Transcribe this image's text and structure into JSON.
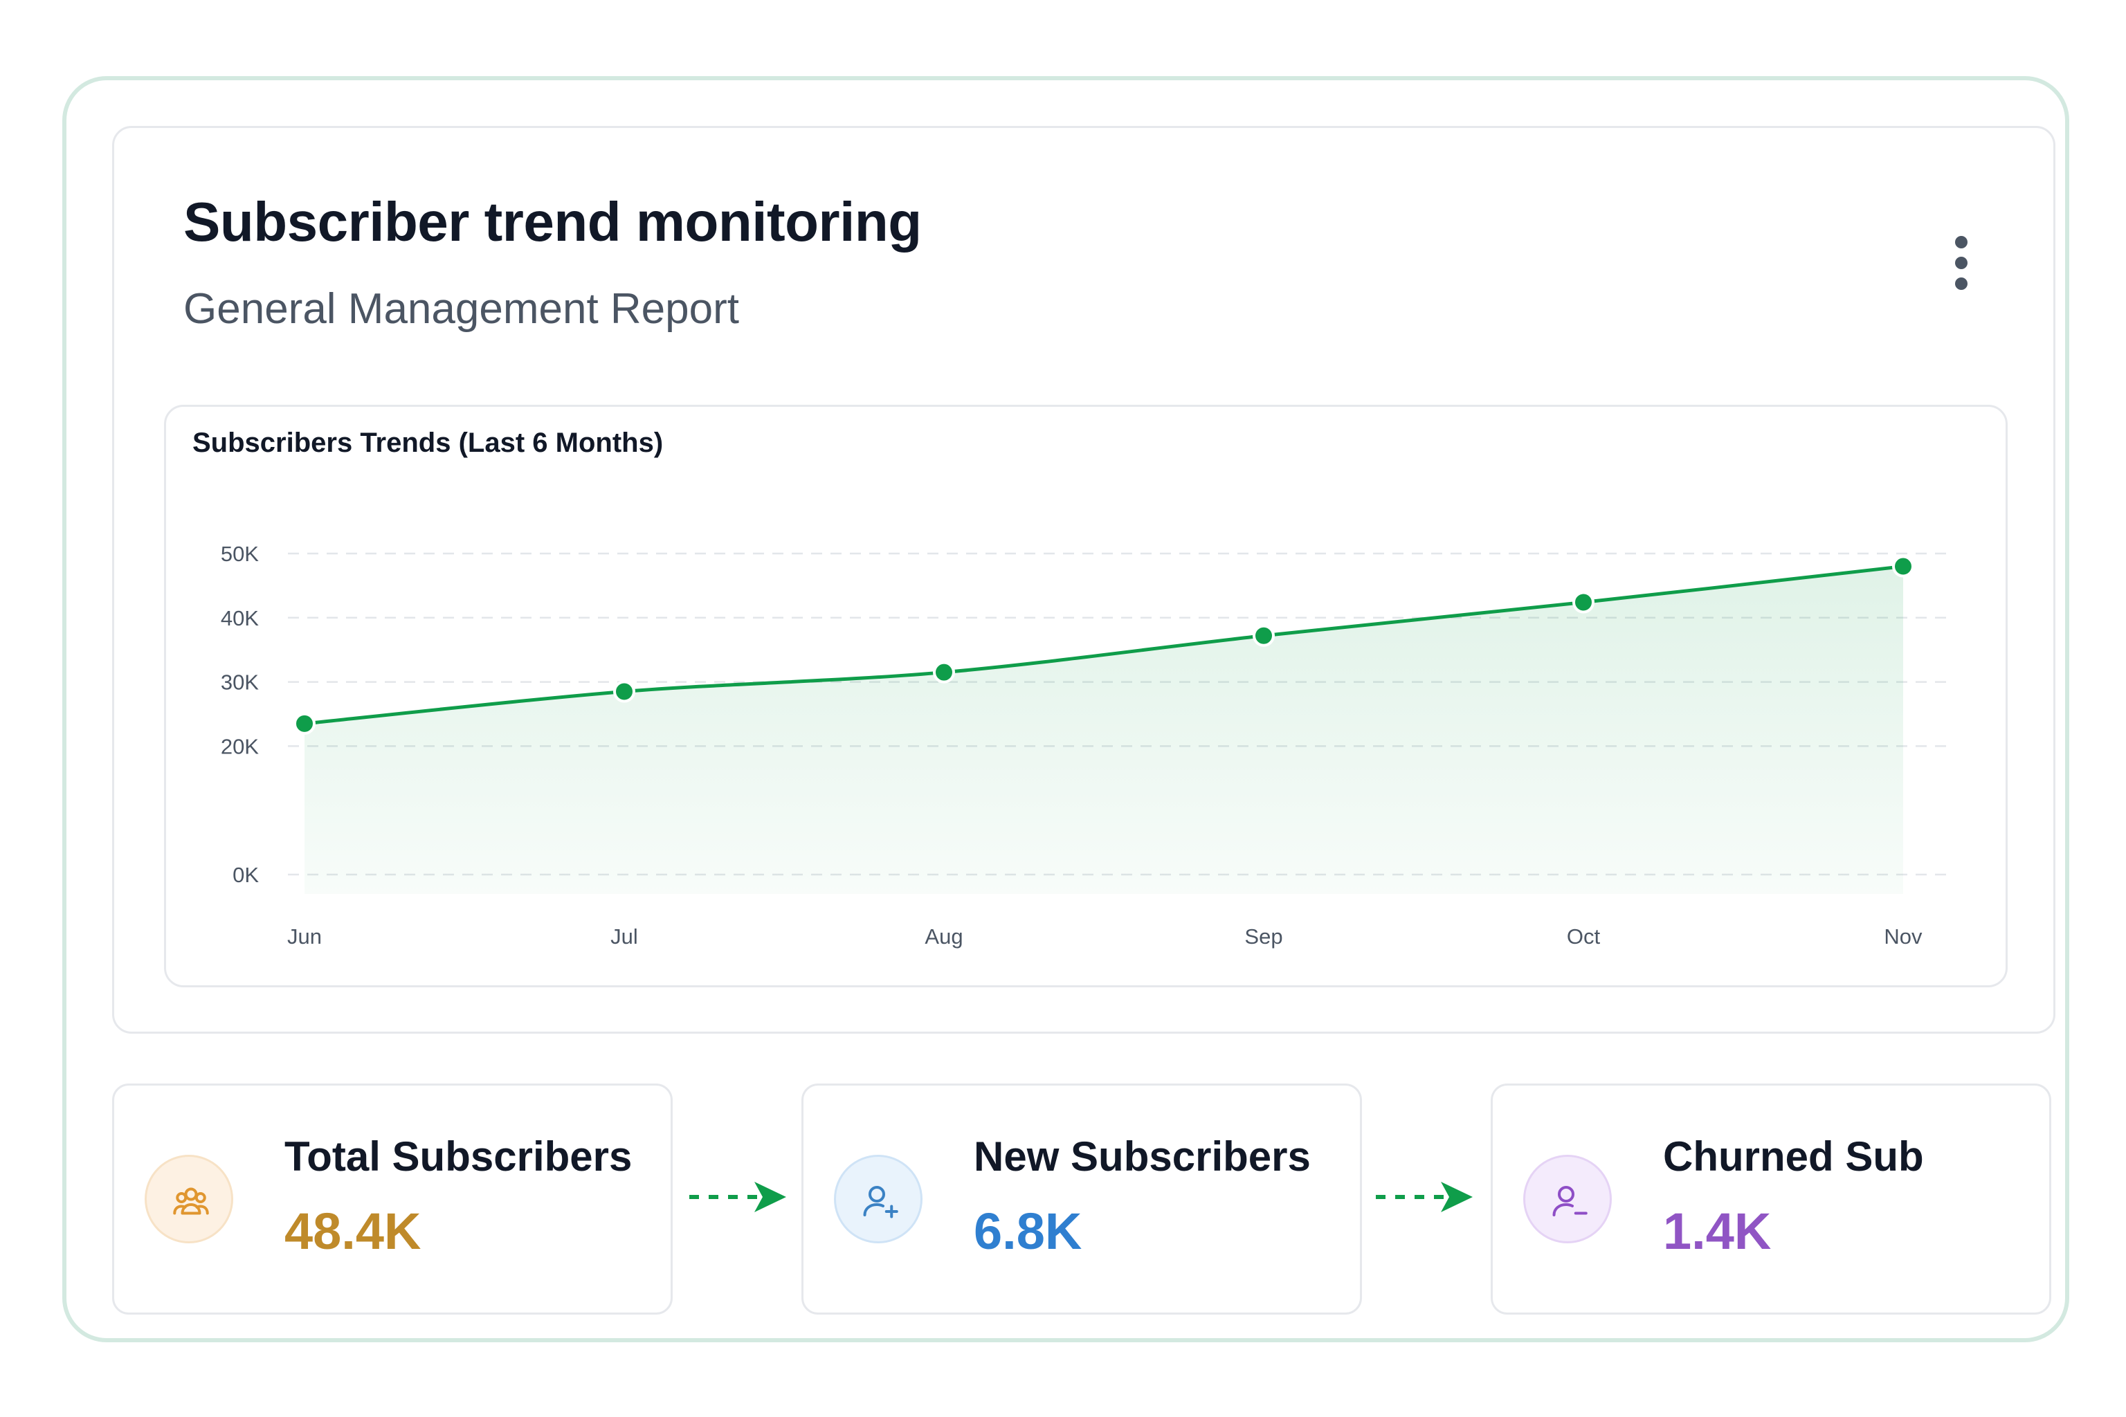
{
  "header": {
    "title": "Subscriber trend monitoring",
    "subtitle": "General Management Report",
    "menu_icon": "more-vertical-icon"
  },
  "chart_data": {
    "type": "area",
    "title": "Subscribers Trends (Last 6 Months)",
    "categories": [
      "Jun",
      "Jul",
      "Aug",
      "Sep",
      "Oct",
      "Nov"
    ],
    "series": [
      {
        "values": [
          23500,
          28500,
          31500,
          37200,
          42400,
          48000
        ],
        "color": "#0f9d4a"
      }
    ],
    "yticks": [
      0,
      10000,
      20000,
      30000,
      40000,
      50000
    ],
    "ytick_labels": [
      "0K",
      "",
      "20K",
      "30K",
      "40K",
      "50K"
    ],
    "ylim": [
      0,
      50000
    ],
    "xlabel": "",
    "ylabel": "",
    "grid": true,
    "legend": "none"
  },
  "stats": [
    {
      "label": "Total Subscribers",
      "value": "48.4K",
      "icon": "users-group-icon",
      "accent": "#bf8a2a",
      "icon_color": "#e0962f",
      "icon_bg": "#fdf1e3",
      "icon_border": "#f7e2c6"
    },
    {
      "label": "New Subscribers",
      "value": "6.8K",
      "icon": "user-plus-icon",
      "accent": "#2f7fd0",
      "icon_color": "#3b82c4",
      "icon_bg": "#e9f3fc",
      "icon_border": "#cfe3f6"
    },
    {
      "label": "Churned Sub",
      "value": "1.4K",
      "icon": "user-minus-icon",
      "accent": "#9055c4",
      "icon_color": "#8e4ec6",
      "icon_bg": "#f4ebfc",
      "icon_border": "#e5d3f5"
    }
  ],
  "flow_arrow_color": "#0f9d4a"
}
